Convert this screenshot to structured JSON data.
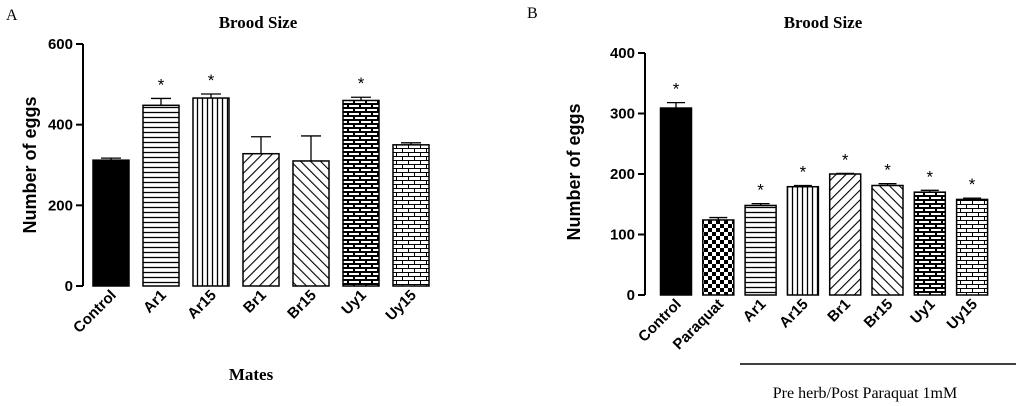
{
  "chart_data": [
    {
      "panel": "A",
      "type": "bar",
      "title": "Brood Size",
      "ylabel": "Number of eggs",
      "xlabel": "Mates",
      "ylim": [
        0,
        600
      ],
      "yticks": [
        0,
        200,
        400,
        600
      ],
      "categories": [
        "Control",
        "Ar1",
        "Ar15",
        "Br1",
        "Br15",
        "Uy1",
        "Uy15"
      ],
      "values": [
        312,
        448,
        466,
        328,
        310,
        460,
        350
      ],
      "errors": [
        5,
        17,
        10,
        42,
        62,
        8,
        5
      ],
      "significant": [
        false,
        true,
        true,
        false,
        false,
        true,
        false
      ],
      "significance_mark": "*",
      "patterns": [
        "solid",
        "hlines",
        "vlines",
        "diag-right",
        "diag-left",
        "bricks-dark",
        "bricks-light"
      ]
    },
    {
      "panel": "B",
      "type": "bar",
      "title": "Brood Size",
      "ylabel": "Number of eggs",
      "xlabel": "Pre herb/Post Paraquat 1mM",
      "ylim": [
        0,
        400
      ],
      "yticks": [
        0,
        100,
        200,
        300,
        400
      ],
      "categories": [
        "Control",
        "Paraquat",
        "Ar1",
        "Ar15",
        "Br1",
        "Br15",
        "Uy1",
        "Uy15"
      ],
      "values": [
        309,
        124,
        148,
        179,
        200,
        181,
        170,
        158
      ],
      "errors": [
        9,
        4,
        3,
        2,
        1,
        3,
        3,
        2
      ],
      "significant": [
        true,
        false,
        true,
        true,
        true,
        true,
        true,
        true
      ],
      "significance_mark": "*",
      "patterns": [
        "solid",
        "checker",
        "hlines",
        "vlines",
        "diag-right",
        "diag-left",
        "bricks-dark",
        "bricks-light"
      ]
    }
  ]
}
